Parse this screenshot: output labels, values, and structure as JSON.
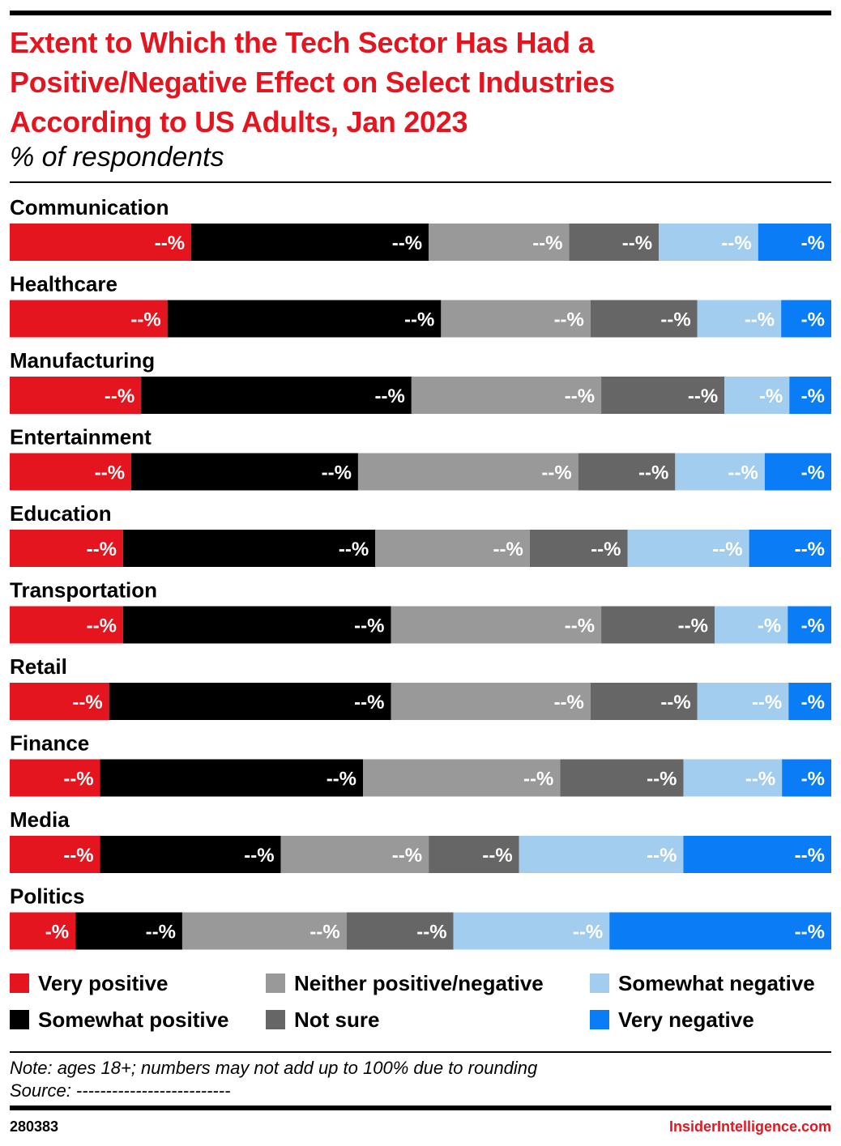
{
  "header": {
    "title_lines": [
      "Extent to Which the Tech Sector Has Had a",
      "Positive/Negative Effect on Select Industries",
      "According to US Adults, Jan 2023"
    ],
    "subtitle": "% of respondents"
  },
  "chart_data": {
    "type": "bar",
    "orientation": "horizontal",
    "stacked": true,
    "normalized_total": 100,
    "title": "Extent to Which the Tech Sector Has Had a Positive/Negative Effect on Select Industries According to US Adults, Jan 2023",
    "subtitle": "% of respondents",
    "categories": [
      "Communication",
      "Healthcare",
      "Manufacturing",
      "Entertainment",
      "Education",
      "Transportation",
      "Retail",
      "Finance",
      "Media",
      "Politics"
    ],
    "series": [
      {
        "name": "Very positive",
        "color": "#e5151f",
        "values": [
          22.1,
          19.2,
          16.0,
          14.8,
          13.8,
          13.8,
          12.1,
          11.0,
          11.0,
          8.0
        ],
        "labels": [
          "--%",
          "--%",
          "--%",
          "--%",
          "--%",
          "--%",
          "--%",
          "--%",
          "--%",
          "-%"
        ]
      },
      {
        "name": "Somewhat positive",
        "color": "#000000",
        "values": [
          28.9,
          33.3,
          32.9,
          27.6,
          30.7,
          32.6,
          34.3,
          32.0,
          22.0,
          13.0
        ],
        "labels": [
          "--%",
          "--%",
          "--%",
          "--%",
          "--%",
          "--%",
          "--%",
          "--%",
          "--%",
          "--%"
        ]
      },
      {
        "name": "Neither positive/negative",
        "color": "#999999",
        "values": [
          17.1,
          18.2,
          23.1,
          26.8,
          18.8,
          25.6,
          24.3,
          24.0,
          18.0,
          20.0
        ],
        "labels": [
          "--%",
          "--%",
          "--%",
          "--%",
          "--%",
          "--%",
          "--%",
          "--%",
          "--%",
          "--%"
        ]
      },
      {
        "name": "Not sure",
        "color": "#666666",
        "values": [
          10.9,
          13.0,
          15.0,
          11.8,
          11.9,
          13.8,
          13.0,
          15.0,
          11.0,
          13.0
        ],
        "labels": [
          "--%",
          "--%",
          "--%",
          "--%",
          "--%",
          "--%",
          "--%",
          "--%",
          "--%",
          "--%"
        ]
      },
      {
        "name": "Somewhat negative",
        "color": "#a3cdef",
        "values": [
          12.1,
          10.2,
          7.9,
          10.9,
          14.8,
          8.9,
          11.1,
          12.0,
          20.0,
          19.0
        ],
        "labels": [
          "--%",
          "--%",
          "-%",
          "--%",
          "--%",
          "-%",
          "--%",
          "--%",
          "--%",
          "--%"
        ]
      },
      {
        "name": "Very negative",
        "color": "#0a7cf5",
        "values": [
          8.9,
          6.1,
          5.1,
          8.1,
          10.0,
          5.3,
          5.2,
          6.0,
          18.0,
          27.0
        ],
        "labels": [
          "-%",
          "-%",
          "-%",
          "-%",
          "--%",
          "-%",
          "-%",
          "-%",
          "--%",
          "--%"
        ]
      }
    ]
  },
  "legend": {
    "items": [
      {
        "name": "Very positive",
        "color": "#e5151f"
      },
      {
        "name": "Somewhat positive",
        "color": "#000000"
      },
      {
        "name": "Neither positive/negative",
        "color": "#999999"
      },
      {
        "name": "Not sure",
        "color": "#666666"
      },
      {
        "name": "Somewhat negative",
        "color": "#a3cdef"
      },
      {
        "name": "Very negative",
        "color": "#0a7cf5"
      }
    ]
  },
  "footer": {
    "note": "Note: ages 18+; numbers may not add up to 100% due to rounding",
    "source": "Source: --------------------------",
    "chart_id": "280383",
    "brand": "InsiderIntelligence.com"
  }
}
